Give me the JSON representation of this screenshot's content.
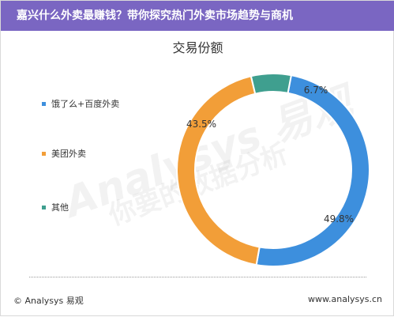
{
  "header": {
    "title": "嘉兴什么外卖最赚钱？带你探究热门外卖市场趋势与商机"
  },
  "footer": {
    "left": "© Analysys 易观",
    "right": "www.analysys.cn"
  },
  "watermark": {
    "line1": "Analysys 易观",
    "line2": "你要的数据分析"
  },
  "chart_data": {
    "type": "pie",
    "donut": true,
    "title": "交易份额",
    "legend_position": "left",
    "series": [
      {
        "name": "饿了么+百度外卖",
        "value": 49.8,
        "label": "49.8%",
        "color": "#3d8fdd"
      },
      {
        "name": "美团外卖",
        "value": 43.5,
        "label": "43.5%",
        "color": "#f29e38"
      },
      {
        "name": "其他",
        "value": 6.7,
        "label": "6.7%",
        "color": "#3f9f8f"
      }
    ]
  }
}
